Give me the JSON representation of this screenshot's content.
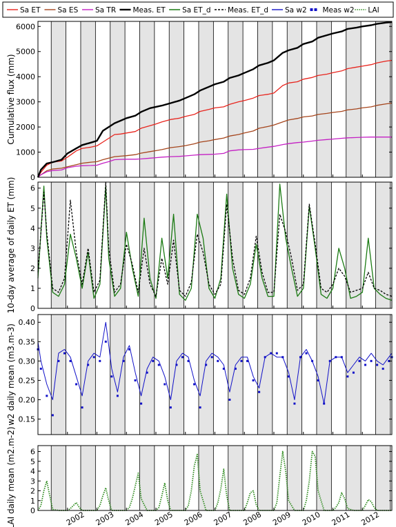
{
  "chart_data": [
    {
      "type": "line",
      "ylabel": "Cumulative flux (mm)",
      "ylim": [
        0,
        6200
      ],
      "yticks": [
        "0",
        "1000",
        "2000",
        "3000",
        "4000",
        "5000",
        "6000"
      ],
      "x": [
        2001.0,
        2001.1,
        2001.3,
        2001.5,
        2001.8,
        2002.0,
        2002.3,
        2002.5,
        2002.8,
        2003.0,
        2003.2,
        2003.4,
        2003.6,
        2003.8,
        2004.0,
        2004.3,
        2004.5,
        2004.8,
        2005.0,
        2005.2,
        2005.5,
        2005.8,
        2006.0,
        2006.3,
        2006.5,
        2006.8,
        2007.0,
        2007.3,
        2007.5,
        2007.8,
        2008.0,
        2008.3,
        2008.5,
        2008.8,
        2009.0,
        2009.3,
        2009.5,
        2009.8,
        2010.0,
        2010.3,
        2010.5,
        2010.8,
        2011.0,
        2011.3,
        2011.5,
        2011.8,
        2012.0,
        2012.3,
        2012.5,
        2012.8,
        2013.0
      ],
      "series": [
        {
          "name": "Sa ET",
          "color": "#e8231c",
          "values": [
            0,
            200,
            480,
            600,
            650,
            800,
            1050,
            1150,
            1200,
            1250,
            1400,
            1550,
            1700,
            1720,
            1760,
            1820,
            1950,
            2050,
            2120,
            2200,
            2300,
            2350,
            2420,
            2500,
            2620,
            2700,
            2760,
            2800,
            2900,
            3000,
            3050,
            3150,
            3250,
            3300,
            3350,
            3650,
            3750,
            3800,
            3900,
            3970,
            4050,
            4100,
            4160,
            4230,
            4320,
            4380,
            4420,
            4480,
            4550,
            4620,
            4650
          ]
        },
        {
          "name": "Sa ES",
          "color": "#a5441b",
          "values": [
            0,
            100,
            260,
            330,
            360,
            420,
            500,
            560,
            600,
            620,
            700,
            760,
            820,
            840,
            860,
            900,
            960,
            1020,
            1060,
            1100,
            1180,
            1220,
            1260,
            1330,
            1400,
            1450,
            1500,
            1560,
            1640,
            1700,
            1760,
            1840,
            1950,
            2020,
            2080,
            2200,
            2280,
            2340,
            2400,
            2440,
            2500,
            2540,
            2580,
            2620,
            2680,
            2720,
            2760,
            2800,
            2860,
            2920,
            2950
          ]
        },
        {
          "name": "Sa TR",
          "color": "#c41fc4",
          "values": [
            0,
            100,
            220,
            270,
            290,
            380,
            440,
            460,
            470,
            480,
            560,
            620,
            700,
            710,
            720,
            720,
            730,
            760,
            780,
            800,
            820,
            830,
            850,
            880,
            900,
            910,
            920,
            950,
            1050,
            1090,
            1100,
            1110,
            1150,
            1200,
            1230,
            1300,
            1340,
            1380,
            1400,
            1440,
            1470,
            1500,
            1520,
            1550,
            1570,
            1580,
            1590,
            1600,
            1600,
            1600,
            1600
          ]
        },
        {
          "name": "Meas. ET",
          "color": "#000000",
          "values": [
            0,
            300,
            550,
            600,
            700,
            950,
            1150,
            1280,
            1380,
            1450,
            1850,
            2000,
            2150,
            2250,
            2350,
            2450,
            2600,
            2750,
            2800,
            2850,
            2950,
            3050,
            3150,
            3300,
            3450,
            3600,
            3700,
            3800,
            3950,
            4050,
            4150,
            4300,
            4450,
            4550,
            4650,
            4950,
            5050,
            5150,
            5300,
            5400,
            5550,
            5650,
            5720,
            5800,
            5900,
            5950,
            6000,
            6050,
            6100,
            6150,
            6170
          ]
        }
      ]
    },
    {
      "type": "line",
      "ylabel": "10-day average of daily ET (mm)",
      "ylim": [
        0,
        6.3
      ],
      "yticks": [
        "0",
        "1",
        "2",
        "3",
        "4",
        "5",
        "6"
      ],
      "x": [
        2001.0,
        2001.2,
        2001.3,
        2001.5,
        2001.7,
        2001.9,
        2002.1,
        2002.3,
        2002.5,
        2002.7,
        2002.9,
        2003.1,
        2003.3,
        2003.4,
        2003.6,
        2003.8,
        2004.0,
        2004.2,
        2004.4,
        2004.6,
        2004.8,
        2005.0,
        2005.2,
        2005.4,
        2005.6,
        2005.8,
        2006.0,
        2006.2,
        2006.4,
        2006.6,
        2006.8,
        2007.0,
        2007.2,
        2007.4,
        2007.6,
        2007.8,
        2008.0,
        2008.2,
        2008.4,
        2008.6,
        2008.8,
        2009.0,
        2009.2,
        2009.4,
        2009.6,
        2009.8,
        2010.0,
        2010.2,
        2010.4,
        2010.6,
        2010.8,
        2011.0,
        2011.2,
        2011.4,
        2011.6,
        2011.8,
        2012.0,
        2012.2,
        2012.4,
        2012.6,
        2012.8,
        2013.0
      ],
      "series": [
        {
          "name": "Sa ET_d",
          "color": "#1a7a12",
          "values": [
            1.5,
            6.1,
            3.5,
            0.8,
            0.6,
            1.2,
            3.7,
            2.5,
            1.0,
            2.8,
            0.5,
            1.2,
            6.1,
            2.5,
            0.6,
            1.0,
            3.8,
            2.0,
            0.6,
            4.5,
            1.5,
            0.5,
            3.5,
            1.5,
            4.7,
            0.7,
            0.4,
            1.0,
            4.7,
            3.5,
            1.0,
            0.5,
            1.5,
            5.7,
            2.0,
            0.7,
            0.5,
            1.2,
            3.2,
            1.5,
            0.6,
            0.6,
            6.2,
            3.5,
            2.0,
            0.6,
            1.0,
            5.1,
            3.0,
            0.7,
            0.5,
            1.0,
            3.0,
            2.0,
            0.5,
            0.6,
            0.8,
            3.5,
            1.0,
            0.7,
            0.5,
            0.4
          ]
        },
        {
          "name": "Meas. ET_d",
          "color": "#000000",
          "values": [
            1.8,
            5.8,
            3.8,
            1.0,
            0.8,
            1.5,
            5.4,
            2.8,
            1.2,
            3.0,
            0.8,
            1.4,
            6.3,
            3.0,
            0.8,
            1.2,
            3.2,
            2.2,
            0.8,
            3.0,
            1.2,
            0.6,
            2.5,
            1.2,
            3.4,
            0.9,
            0.6,
            1.3,
            3.7,
            2.8,
            1.2,
            0.7,
            1.2,
            5.2,
            2.5,
            0.9,
            0.7,
            1.5,
            3.6,
            1.8,
            0.8,
            0.8,
            4.7,
            3.8,
            2.5,
            0.9,
            1.2,
            5.2,
            3.2,
            1.0,
            0.8,
            1.2,
            2.0,
            1.6,
            0.8,
            0.9,
            1.0,
            1.8,
            1.0,
            0.9,
            0.7,
            0.6
          ]
        }
      ]
    },
    {
      "type": "line",
      "ylabel": "w2 daily mean (m3.m-3)",
      "ylim": [
        0.11,
        0.42
      ],
      "yticks": [
        "0.15",
        "0.20",
        "0.25",
        "0.30",
        "0.35",
        "0.40"
      ],
      "x": [
        2001.0,
        2001.1,
        2001.3,
        2001.5,
        2001.7,
        2001.9,
        2002.1,
        2002.3,
        2002.5,
        2002.7,
        2002.9,
        2003.1,
        2003.3,
        2003.5,
        2003.7,
        2003.9,
        2004.1,
        2004.3,
        2004.5,
        2004.7,
        2004.9,
        2005.1,
        2005.3,
        2005.5,
        2005.7,
        2005.9,
        2006.1,
        2006.3,
        2006.5,
        2006.7,
        2006.9,
        2007.1,
        2007.3,
        2007.5,
        2007.7,
        2007.9,
        2008.1,
        2008.3,
        2008.5,
        2008.7,
        2008.9,
        2009.1,
        2009.3,
        2009.5,
        2009.7,
        2009.9,
        2010.1,
        2010.3,
        2010.5,
        2010.7,
        2010.9,
        2011.1,
        2011.3,
        2011.5,
        2011.7,
        2011.9,
        2012.1,
        2012.3,
        2012.5,
        2012.7,
        2012.9,
        2013.0
      ],
      "series": [
        {
          "name": "Sa w2",
          "color": "#1010c8",
          "values": [
            0.35,
            0.3,
            0.24,
            0.2,
            0.32,
            0.33,
            0.31,
            0.26,
            0.21,
            0.3,
            0.32,
            0.31,
            0.4,
            0.28,
            0.22,
            0.31,
            0.34,
            0.27,
            0.21,
            0.28,
            0.31,
            0.3,
            0.26,
            0.2,
            0.3,
            0.32,
            0.31,
            0.25,
            0.21,
            0.3,
            0.32,
            0.31,
            0.29,
            0.22,
            0.29,
            0.31,
            0.31,
            0.26,
            0.23,
            0.31,
            0.32,
            0.31,
            0.31,
            0.27,
            0.2,
            0.31,
            0.33,
            0.3,
            0.26,
            0.19,
            0.3,
            0.31,
            0.31,
            0.27,
            0.29,
            0.31,
            0.3,
            0.32,
            0.3,
            0.29,
            0.31,
            0.32
          ]
        },
        {
          "name": "Meas w2",
          "color": "#1010c8",
          "values": [
            0.33,
            0.28,
            0.21,
            0.16,
            0.3,
            0.32,
            0.3,
            0.24,
            0.18,
            0.29,
            0.31,
            0.3,
            0.35,
            0.26,
            0.21,
            0.3,
            0.33,
            0.25,
            0.19,
            0.27,
            0.3,
            0.29,
            0.24,
            0.18,
            0.29,
            0.31,
            0.3,
            0.24,
            0.18,
            0.29,
            0.31,
            0.3,
            0.28,
            0.2,
            0.28,
            0.3,
            0.3,
            0.25,
            0.22,
            0.31,
            0.32,
            0.32,
            0.31,
            0.26,
            0.19,
            0.31,
            0.32,
            0.3,
            0.25,
            0.19,
            0.3,
            0.31,
            0.31,
            0.26,
            0.27,
            0.3,
            0.29,
            0.3,
            0.29,
            0.28,
            0.3,
            0.31
          ]
        }
      ]
    },
    {
      "type": "line",
      "ylabel": "LAI daily mean (m2.m-2)",
      "ylim": [
        0,
        6.6
      ],
      "yticks": [
        "0",
        "1",
        "2",
        "3",
        "4",
        "5",
        "6"
      ],
      "x": [
        2001.0,
        2001.1,
        2001.2,
        2001.3,
        2001.4,
        2001.5,
        2001.7,
        2001.9,
        2002.0,
        2002.1,
        2002.2,
        2002.3,
        2002.4,
        2002.5,
        2002.7,
        2002.9,
        2003.0,
        2003.1,
        2003.2,
        2003.3,
        2003.4,
        2003.5,
        2003.7,
        2003.9,
        2004.0,
        2004.1,
        2004.2,
        2004.3,
        2004.4,
        2004.5,
        2004.7,
        2004.9,
        2005.0,
        2005.1,
        2005.2,
        2005.3,
        2005.4,
        2005.5,
        2005.7,
        2005.9,
        2006.0,
        2006.1,
        2006.2,
        2006.3,
        2006.4,
        2006.5,
        2006.7,
        2006.9,
        2007.0,
        2007.1,
        2007.2,
        2007.3,
        2007.4,
        2007.5,
        2007.7,
        2007.9,
        2008.0,
        2008.1,
        2008.2,
        2008.3,
        2008.4,
        2008.5,
        2008.7,
        2008.9,
        2009.0,
        2009.1,
        2009.2,
        2009.3,
        2009.4,
        2009.5,
        2009.7,
        2009.9,
        2010.0,
        2010.1,
        2010.2,
        2010.3,
        2010.4,
        2010.5,
        2010.7,
        2010.9,
        2011.0,
        2011.1,
        2011.2,
        2011.3,
        2011.4,
        2011.5,
        2011.7,
        2011.9,
        2012.0,
        2012.1,
        2012.2,
        2012.3,
        2012.4,
        2012.5,
        2012.7,
        2012.9,
        2013.0
      ],
      "series": [
        {
          "name": "LAI",
          "color": "#2e8b1e",
          "values": [
            0,
            0.5,
            2.0,
            3.0,
            1.5,
            0.1,
            0,
            0,
            0,
            0.2,
            0.5,
            0.8,
            0.3,
            0,
            0,
            0,
            0,
            0.5,
            1.5,
            2.3,
            1.0,
            0,
            0,
            0,
            0,
            0.3,
            1.2,
            2.5,
            3.8,
            1.2,
            0,
            0,
            0,
            0.3,
            1.5,
            2.8,
            1.0,
            0,
            0,
            0,
            0,
            0.5,
            2.0,
            4.5,
            5.7,
            2.0,
            0,
            0,
            0,
            0.8,
            2.2,
            4.2,
            1.5,
            0,
            0,
            0,
            0,
            0.8,
            1.8,
            2.0,
            0.6,
            0,
            0,
            0,
            0,
            0.8,
            3.5,
            6.0,
            4.0,
            1.0,
            0,
            0,
            0,
            1.0,
            3.0,
            6.0,
            5.5,
            2.0,
            0,
            0,
            0,
            0.3,
            0.8,
            1.8,
            1.2,
            0.2,
            0,
            0,
            0,
            0.5,
            1.1,
            0.9,
            0.3,
            0,
            0,
            0,
            0
          ]
        }
      ]
    }
  ],
  "legend": [
    {
      "label": "Sa ET",
      "color": "#e8231c",
      "style": "solid",
      "weight": "normal"
    },
    {
      "label": "Sa ES",
      "color": "#a5441b",
      "style": "solid",
      "weight": "normal"
    },
    {
      "label": "Sa TR",
      "color": "#c41fc4",
      "style": "solid",
      "weight": "normal"
    },
    {
      "label": "Meas. ET",
      "color": "#000000",
      "style": "solid",
      "weight": "bold"
    },
    {
      "label": "Sa ET_d",
      "color": "#1a7a12",
      "style": "solid",
      "weight": "normal"
    },
    {
      "label": "Meas. ET_d",
      "color": "#000000",
      "style": "dashed",
      "weight": "normal"
    },
    {
      "label": "Sa w2",
      "color": "#1010c8",
      "style": "solid",
      "weight": "normal"
    },
    {
      "label": "Meas w2",
      "color": "#1010c8",
      "style": "square",
      "weight": "normal"
    },
    {
      "label": "LAI",
      "color": "#2e8b1e",
      "style": "dotted",
      "weight": "normal"
    }
  ],
  "year_labels": [
    "2002",
    "2003",
    "2004",
    "2005",
    "2006",
    "2007",
    "2008",
    "2009",
    "2010",
    "2011",
    "2012"
  ],
  "year_positions": [
    2002.0,
    2003.0,
    2004.0,
    2005.0,
    2006.0,
    2007.0,
    2008.0,
    2009.0,
    2010.0,
    2011.0,
    2012.0
  ],
  "xlim": [
    2001.0,
    2013.0
  ],
  "growing_seasons": [
    [
      2001.45,
      2001.95
    ],
    [
      2002.45,
      2002.95
    ],
    [
      2003.45,
      2003.95
    ],
    [
      2004.45,
      2004.95
    ],
    [
      2005.45,
      2005.95
    ],
    [
      2006.45,
      2006.95
    ],
    [
      2007.45,
      2007.95
    ],
    [
      2008.45,
      2008.95
    ],
    [
      2009.45,
      2009.95
    ],
    [
      2010.45,
      2010.95
    ],
    [
      2011.45,
      2011.95
    ],
    [
      2012.45,
      2012.95
    ]
  ]
}
